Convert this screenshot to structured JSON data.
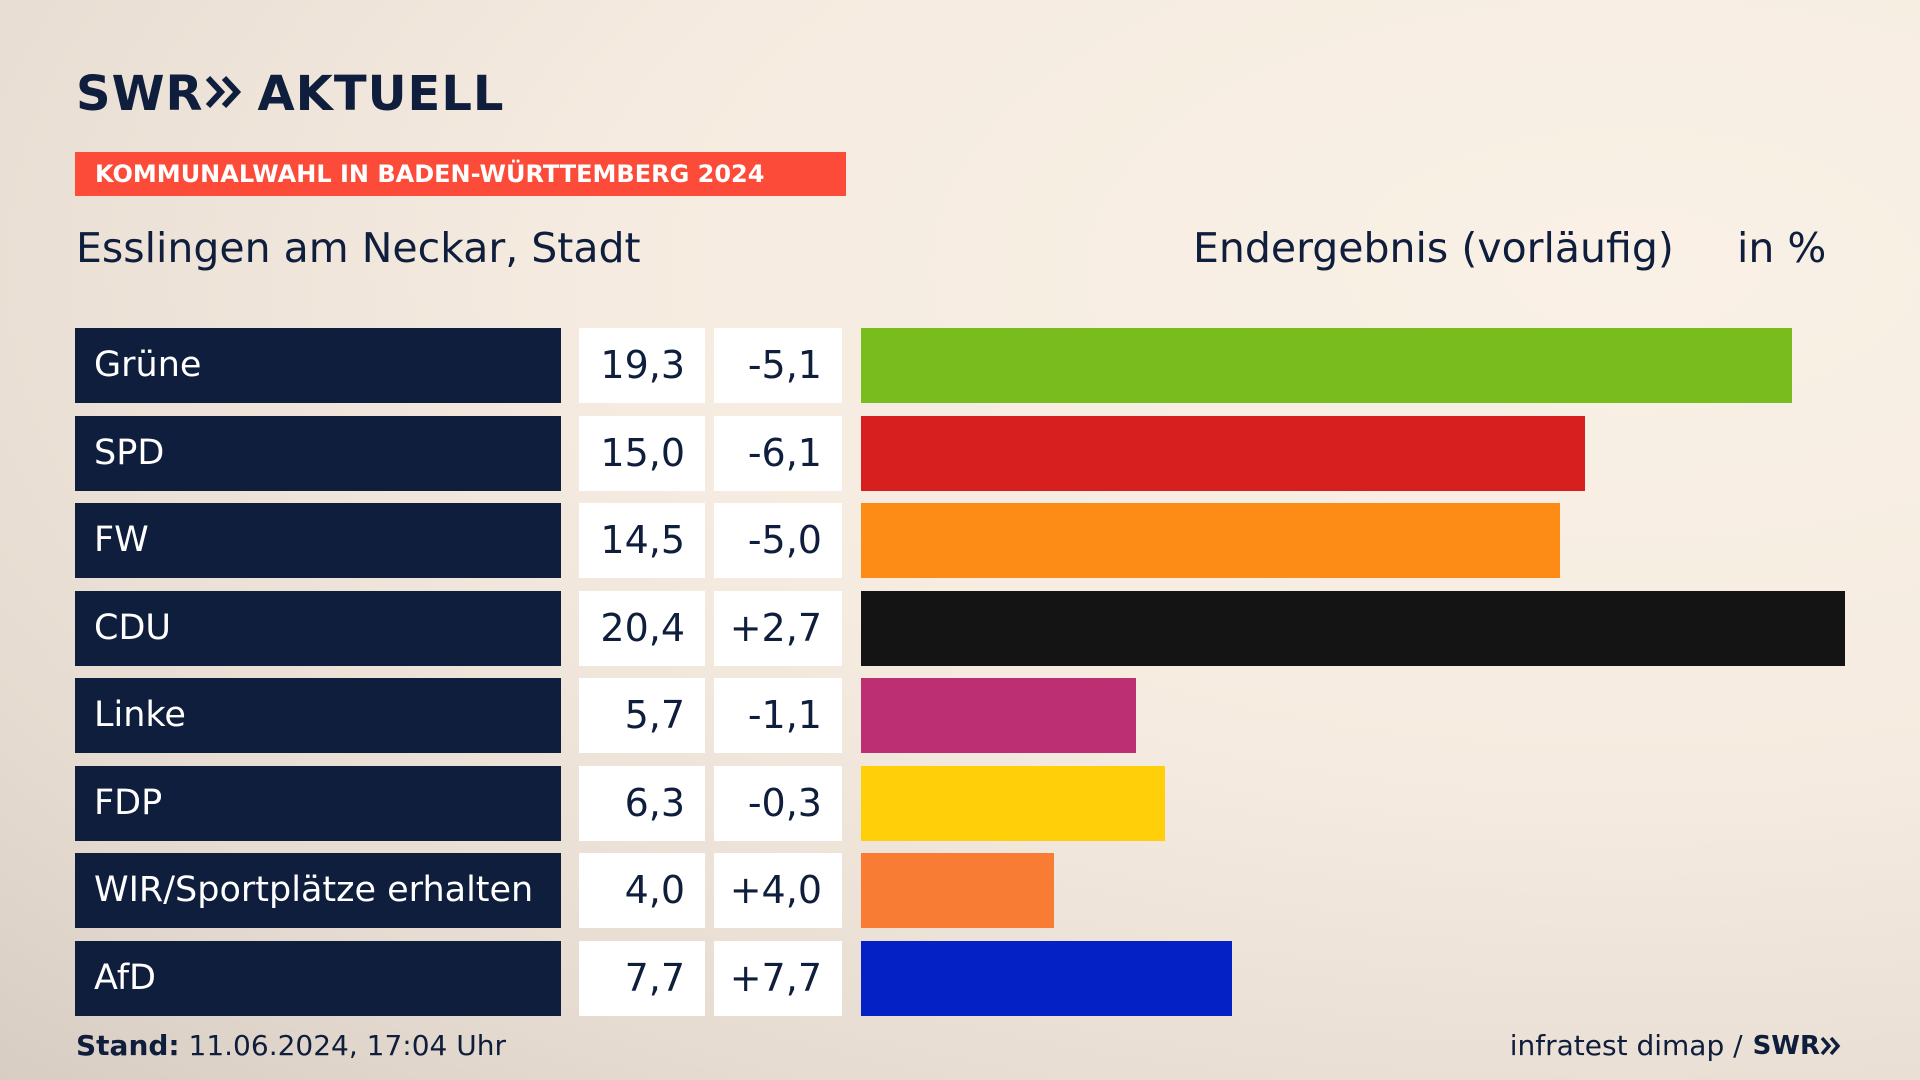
{
  "header": {
    "logo_brand": "SWR",
    "logo_product": "AKTUELL",
    "tag": "KOMMUNALWAHL IN BADEN-WÜRTTEMBERG 2024",
    "place": "Esslingen am Neckar, Stadt",
    "result_label": "Endergebnis (vorläufig)",
    "unit_label": "in %"
  },
  "footer": {
    "stand_label": "Stand:",
    "stand_value": "11.06.2024, 17:04 Uhr",
    "source": "infratest dimap /",
    "source_brand": "SWR"
  },
  "colors": {
    "navy": "#0f1e3c",
    "tag_red": "#fd4b3a"
  },
  "chart_data": {
    "type": "bar",
    "title": "Esslingen am Neckar, Stadt",
    "subtitle": "Endergebnis (vorläufig)",
    "ylabel": "in %",
    "categories": [
      "Grüne",
      "SPD",
      "FW",
      "CDU",
      "Linke",
      "FDP",
      "WIR/Sportplätze erhalten",
      "AfD"
    ],
    "values": [
      19.3,
      15.0,
      14.5,
      20.4,
      5.7,
      6.3,
      4.0,
      7.7
    ],
    "value_labels": [
      "19,3",
      "15,0",
      "14,5",
      "20,4",
      "5,7",
      "6,3",
      "4,0",
      "7,7"
    ],
    "diff_labels": [
      "-5,1",
      "-6,1",
      "-5,0",
      "+2,7",
      "-1,1",
      "-0,3",
      "+4,0",
      "+7,7"
    ],
    "diffs": [
      -5.1,
      -6.1,
      -5.0,
      2.7,
      -1.1,
      -0.3,
      4.0,
      7.7
    ],
    "colors": [
      "#78bc1e",
      "#d81f1f",
      "#fd8c17",
      "#141414",
      "#bc2f73",
      "#ffd00a",
      "#f97c35",
      "#0421c6"
    ],
    "ylim": [
      0,
      20.4
    ]
  }
}
